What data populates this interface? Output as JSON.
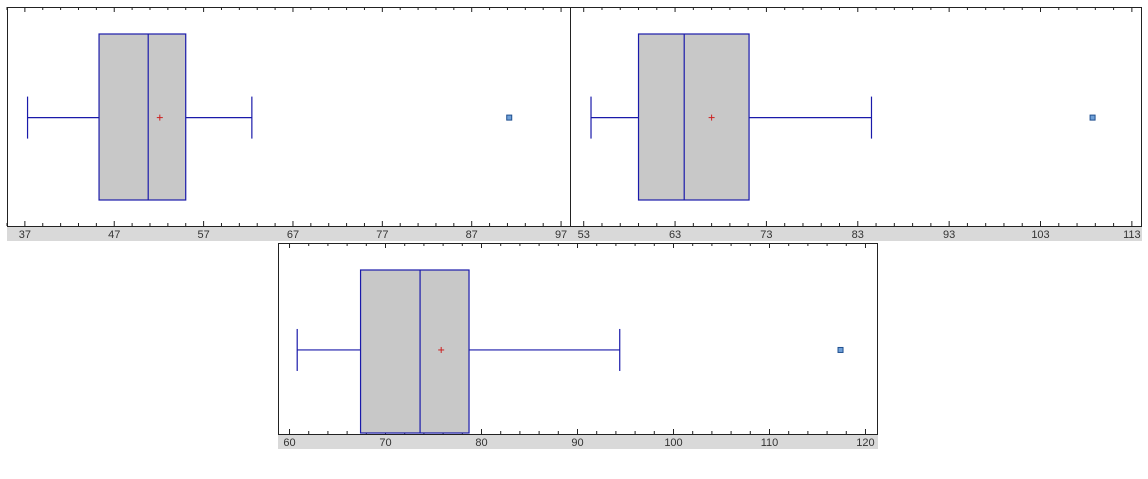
{
  "colors": {
    "box_fill": "#c8c8c8",
    "box_stroke": "#1a1aaa",
    "whisker": "#1a1aaa",
    "mean_marker": "#cc2222",
    "outlier": "#1f4f8f",
    "axis_band": "#d9d9d9",
    "frame": "#222222"
  },
  "chart_data": [
    {
      "type": "box",
      "title": "",
      "xlabel": "",
      "ylabel": "",
      "xlim": [
        35,
        98
      ],
      "ticks": [
        37,
        47,
        57,
        67,
        77,
        87,
        97
      ],
      "tick_labels": [
        "37",
        "47",
        "57",
        "67",
        "77",
        "87",
        "97"
      ],
      "grid": false,
      "whisker_min": 37.3,
      "q1": 45.3,
      "median": 50.8,
      "q3": 55.0,
      "whisker_max": 62.4,
      "mean": 52.1,
      "outliers": [
        91.2
      ]
    },
    {
      "type": "box",
      "title": "",
      "xlabel": "",
      "ylabel": "",
      "xlim": [
        51.5,
        114
      ],
      "ticks": [
        53,
        63,
        73,
        83,
        93,
        103,
        113
      ],
      "tick_labels": [
        "53",
        "63",
        "73",
        "83",
        "93",
        "103",
        "113"
      ],
      "grid": false,
      "whisker_min": 53.8,
      "q1": 59.0,
      "median": 64.0,
      "q3": 71.1,
      "whisker_max": 84.5,
      "mean": 67.0,
      "outliers": [
        108.7
      ]
    },
    {
      "type": "box",
      "title": "",
      "xlabel": "",
      "ylabel": "",
      "xlim": [
        58.8,
        121.2
      ],
      "ticks": [
        60,
        70,
        80,
        90,
        100,
        110,
        120
      ],
      "tick_labels": [
        "60",
        "70",
        "80",
        "90",
        "100",
        "110",
        "120"
      ],
      "grid": false,
      "whisker_min": 60.8,
      "q1": 67.4,
      "median": 73.6,
      "q3": 78.7,
      "whisker_max": 94.4,
      "mean": 75.8,
      "outliers": [
        117.4
      ]
    }
  ]
}
